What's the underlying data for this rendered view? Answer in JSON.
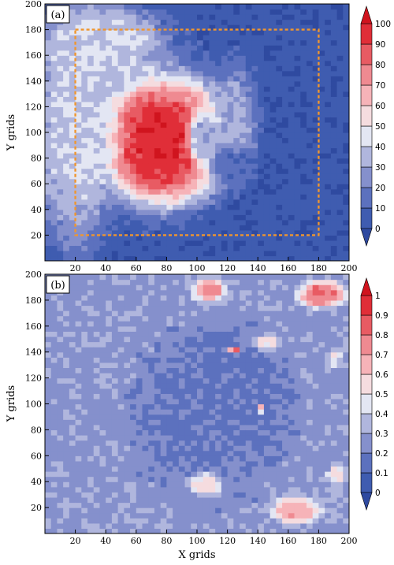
{
  "chart_data": [
    {
      "type": "heatmap",
      "panel_label": "(a)",
      "ylabel": "Y grids",
      "xlim": [
        0,
        200
      ],
      "ylim": [
        0,
        200
      ],
      "xticks": [
        20,
        40,
        60,
        80,
        100,
        120,
        140,
        160,
        180,
        200
      ],
      "yticks": [
        20,
        40,
        60,
        80,
        100,
        120,
        140,
        160,
        180,
        200
      ],
      "colorbar": {
        "levels": [
          0,
          10,
          20,
          30,
          40,
          50,
          60,
          70,
          80,
          90,
          100
        ],
        "labels": [
          "0",
          "10",
          "20",
          "30",
          "40",
          "50",
          "60",
          "70",
          "80",
          "90",
          "100"
        ],
        "extend": "both"
      },
      "annotation": {
        "type": "dashed-rectangle",
        "x": [
          20,
          180
        ],
        "y": [
          20,
          180
        ],
        "color": "#f0962e"
      },
      "field": {
        "background": 3,
        "features": [
          {
            "cx": 78,
            "cy": 98,
            "rx": 58,
            "ry": 70,
            "v": 35
          },
          {
            "cx": 80,
            "cy": 96,
            "rx": 52,
            "ry": 60,
            "v": 62
          },
          {
            "cx": 75,
            "cy": 92,
            "rx": 45,
            "ry": 52,
            "v": 97
          },
          {
            "cx": 20,
            "cy": 100,
            "rx": 35,
            "ry": 110,
            "v": 40
          },
          {
            "cx": 40,
            "cy": 170,
            "rx": 50,
            "ry": 40,
            "v": 42
          },
          {
            "cx": 125,
            "cy": 110,
            "rx": 18,
            "ry": 55,
            "v": 30
          },
          {
            "cx": 122,
            "cy": 75,
            "rx": 18,
            "ry": 20,
            "v": 12
          },
          {
            "cx": 104,
            "cy": 96,
            "rx": 12,
            "ry": 28,
            "v": 30
          }
        ]
      }
    },
    {
      "type": "heatmap",
      "panel_label": "(b)",
      "xlabel": "X grids",
      "ylabel": "Y grids",
      "xlim": [
        0,
        200
      ],
      "ylim": [
        0,
        200
      ],
      "xticks": [
        20,
        40,
        60,
        80,
        100,
        120,
        140,
        160,
        180,
        200
      ],
      "yticks": [
        20,
        40,
        60,
        80,
        100,
        120,
        140,
        160,
        180,
        200
      ],
      "colorbar": {
        "levels": [
          0,
          0.1,
          0.2,
          0.3,
          0.4,
          0.5,
          0.6,
          0.7,
          0.8,
          0.9,
          1
        ],
        "labels": [
          "0",
          "0.1",
          "0.2",
          "0.3",
          "0.4",
          "0.5",
          "0.6",
          "0.7",
          "0.8",
          "0.9",
          "1"
        ],
        "extend": "both"
      },
      "field": {
        "background": 0.27,
        "features": [
          {
            "cx": 120,
            "cy": 110,
            "rx": 45,
            "ry": 55,
            "v": 0.12
          },
          {
            "cx": 108,
            "cy": 90,
            "rx": 62,
            "ry": 78,
            "v": 0.18
          },
          {
            "cx": 182,
            "cy": 185,
            "rx": 18,
            "ry": 13,
            "v": 0.82
          },
          {
            "cx": 108,
            "cy": 188,
            "rx": 13,
            "ry": 11,
            "v": 0.72
          },
          {
            "cx": 165,
            "cy": 18,
            "rx": 20,
            "ry": 13,
            "v": 0.68
          },
          {
            "cx": 105,
            "cy": 38,
            "rx": 14,
            "ry": 11,
            "v": 0.55
          },
          {
            "cx": 192,
            "cy": 45,
            "rx": 8,
            "ry": 10,
            "v": 0.52
          },
          {
            "cx": 145,
            "cy": 148,
            "rx": 10,
            "ry": 8,
            "v": 0.5
          },
          {
            "cx": 125,
            "cy": 142,
            "rx": 5,
            "ry": 4,
            "v": 0.88
          },
          {
            "cx": 142,
            "cy": 97,
            "rx": 2,
            "ry": 4,
            "v": 0.6
          },
          {
            "cx": 190,
            "cy": 135,
            "rx": 6,
            "ry": 8,
            "v": 0.5
          }
        ]
      }
    }
  ],
  "colors": {
    "palette": [
      "#2f4aa0",
      "#3f5cb0",
      "#5c71be",
      "#8590cc",
      "#b0b6dd",
      "#e3e6f3",
      "#f5dcdf",
      "#f6b3b8",
      "#ef8a91",
      "#e85b63",
      "#e02e38",
      "#d0141e"
    ],
    "annotation": "#f0962e"
  }
}
